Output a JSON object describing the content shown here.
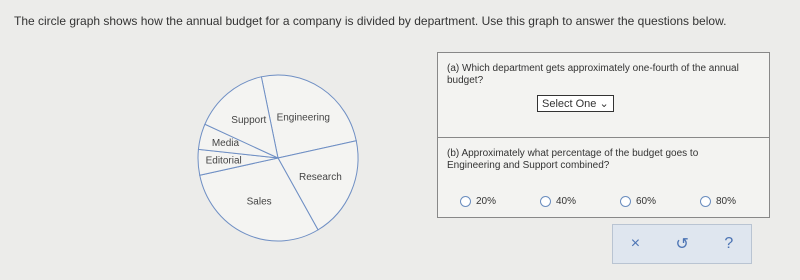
{
  "prompt": "The circle graph shows how the annual budget for a company is divided by department.  Use this graph to answer the questions below.",
  "chart_data": {
    "type": "pie",
    "categories": [
      "Engineering",
      "Research",
      "Sales",
      "Editorial",
      "Media",
      "Support"
    ],
    "values": [
      25,
      20,
      30,
      5,
      5,
      15
    ],
    "color": "#6f8fc4"
  },
  "question_a": {
    "text": "(a) Which department gets approximately one-fourth of the annual budget?",
    "select": "Select One"
  },
  "question_b": {
    "text": "(b) Approximately what percentage of the budget goes to Engineering and Support combined?",
    "options": [
      "20%",
      "40%",
      "60%",
      "80%"
    ]
  },
  "buttons": [
    "×",
    "↺",
    "?"
  ]
}
